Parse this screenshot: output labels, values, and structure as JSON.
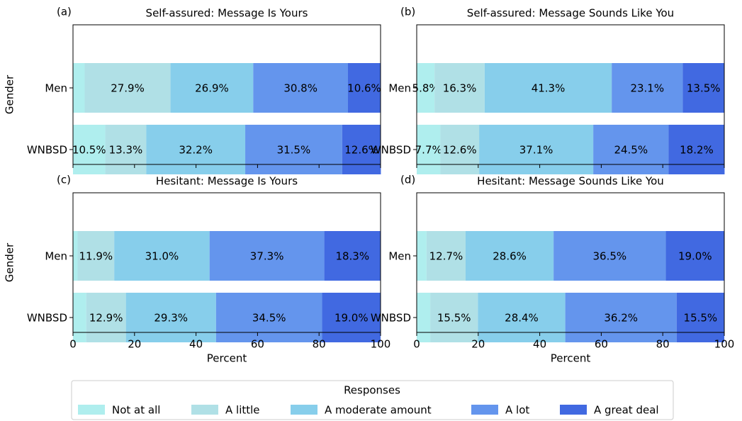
{
  "chart_data": [
    {
      "type": "bar",
      "orientation": "horizontal",
      "stacked": true,
      "panel": "(a)",
      "title": "Self-assured: Message Is Yours",
      "ylabel": "Gender",
      "categories": [
        "Men",
        "WNBSD"
      ],
      "xlim": [
        0,
        100
      ],
      "xticks": [
        0,
        20,
        40,
        60,
        80,
        100
      ],
      "show_xtick_labels": false,
      "series": [
        {
          "name": "Not at all",
          "color": "#afeeee",
          "values": [
            3.8,
            10.5
          ],
          "value_labels": [
            null,
            "10.5%"
          ]
        },
        {
          "name": "A little",
          "color": "#b0e0e6",
          "values": [
            27.9,
            13.3
          ],
          "value_labels": [
            "27.9%",
            "13.3%"
          ]
        },
        {
          "name": "A moderate amount",
          "color": "#87ceeb",
          "values": [
            26.9,
            32.2
          ],
          "value_labels": [
            "26.9%",
            "32.2%"
          ]
        },
        {
          "name": "A lot",
          "color": "#6495ed",
          "values": [
            30.8,
            31.5
          ],
          "value_labels": [
            "30.8%",
            "31.5%"
          ]
        },
        {
          "name": "A great deal",
          "color": "#4169e1",
          "values": [
            10.6,
            12.6
          ],
          "value_labels": [
            "10.6%",
            "12.6%"
          ]
        }
      ]
    },
    {
      "type": "bar",
      "orientation": "horizontal",
      "stacked": true,
      "panel": "(b)",
      "title": "Self-assured: Message Sounds Like You",
      "categories": [
        "Men",
        "WNBSD"
      ],
      "xlim": [
        0,
        100
      ],
      "xticks": [
        0,
        20,
        40,
        60,
        80,
        100
      ],
      "show_xtick_labels": false,
      "series": [
        {
          "name": "Not at all",
          "color": "#afeeee",
          "values": [
            5.8,
            7.7
          ],
          "value_labels": [
            "5.8%",
            "7.7%"
          ]
        },
        {
          "name": "A little",
          "color": "#b0e0e6",
          "values": [
            16.3,
            12.6
          ],
          "value_labels": [
            "16.3%",
            "12.6%"
          ]
        },
        {
          "name": "A moderate amount",
          "color": "#87ceeb",
          "values": [
            41.3,
            37.1
          ],
          "value_labels": [
            "41.3%",
            "37.1%"
          ]
        },
        {
          "name": "A lot",
          "color": "#6495ed",
          "values": [
            23.1,
            24.5
          ],
          "value_labels": [
            "23.1%",
            "24.5%"
          ]
        },
        {
          "name": "A great deal",
          "color": "#4169e1",
          "values": [
            13.5,
            18.2
          ],
          "value_labels": [
            "13.5%",
            "18.2%"
          ]
        }
      ]
    },
    {
      "type": "bar",
      "orientation": "horizontal",
      "stacked": true,
      "panel": "(c)",
      "title": "Hesitant: Message Is Yours",
      "ylabel": "Gender",
      "xlabel": "Percent",
      "categories": [
        "Men",
        "WNBSD"
      ],
      "xlim": [
        0,
        100
      ],
      "xticks": [
        0,
        20,
        40,
        60,
        80,
        100
      ],
      "show_xtick_labels": true,
      "series": [
        {
          "name": "Not at all",
          "color": "#afeeee",
          "values": [
            1.5,
            4.3
          ],
          "value_labels": [
            null,
            null
          ]
        },
        {
          "name": "A little",
          "color": "#b0e0e6",
          "values": [
            11.9,
            12.9
          ],
          "value_labels": [
            "11.9%",
            "12.9%"
          ]
        },
        {
          "name": "A moderate amount",
          "color": "#87ceeb",
          "values": [
            31.0,
            29.3
          ],
          "value_labels": [
            "31.0%",
            "29.3%"
          ]
        },
        {
          "name": "A lot",
          "color": "#6495ed",
          "values": [
            37.3,
            34.5
          ],
          "value_labels": [
            "37.3%",
            "34.5%"
          ]
        },
        {
          "name": "A great deal",
          "color": "#4169e1",
          "values": [
            18.3,
            19.0
          ],
          "value_labels": [
            "18.3%",
            "19.0%"
          ]
        }
      ]
    },
    {
      "type": "bar",
      "orientation": "horizontal",
      "stacked": true,
      "panel": "(d)",
      "title": "Hesitant: Message Sounds Like You",
      "xlabel": "Percent",
      "categories": [
        "Men",
        "WNBSD"
      ],
      "xlim": [
        0,
        100
      ],
      "xticks": [
        0,
        20,
        40,
        60,
        80,
        100
      ],
      "show_xtick_labels": true,
      "series": [
        {
          "name": "Not at all",
          "color": "#afeeee",
          "values": [
            3.2,
            4.4
          ],
          "value_labels": [
            null,
            null
          ]
        },
        {
          "name": "A little",
          "color": "#b0e0e6",
          "values": [
            12.7,
            15.5
          ],
          "value_labels": [
            "12.7%",
            "15.5%"
          ]
        },
        {
          "name": "A moderate amount",
          "color": "#87ceeb",
          "values": [
            28.6,
            28.4
          ],
          "value_labels": [
            "28.6%",
            "28.4%"
          ]
        },
        {
          "name": "A lot",
          "color": "#6495ed",
          "values": [
            36.5,
            36.2
          ],
          "value_labels": [
            "36.5%",
            "36.2%"
          ]
        },
        {
          "name": "A great deal",
          "color": "#4169e1",
          "values": [
            19.0,
            15.5
          ],
          "value_labels": [
            "19.0%",
            "15.5%"
          ]
        }
      ]
    }
  ],
  "legend": {
    "title": "Responses",
    "loc": "lower center"
  }
}
